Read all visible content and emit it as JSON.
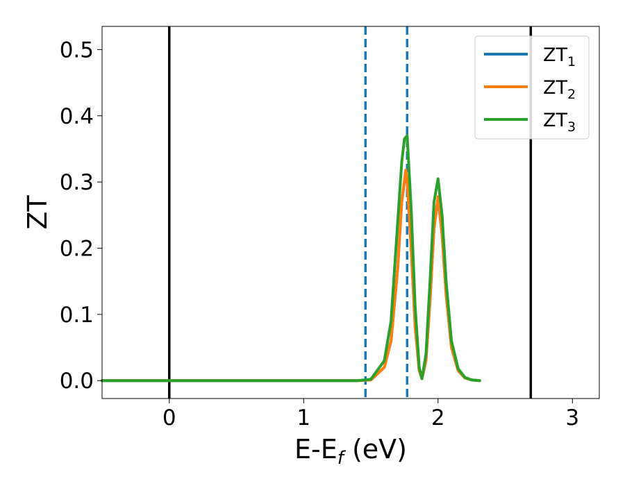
{
  "chart_data": {
    "type": "line",
    "xlabel": {
      "main": "E-E",
      "subscript": "f",
      "suffix": " (eV)"
    },
    "ylabel": "ZT",
    "xlim": [
      -0.5,
      3.2
    ],
    "ylim": [
      -0.027,
      0.535
    ],
    "xticks": [
      0,
      1,
      2,
      3
    ],
    "xtick_labels": [
      "0",
      "1",
      "2",
      "3"
    ],
    "yticks": [
      0.0,
      0.1,
      0.2,
      0.3,
      0.4,
      0.5
    ],
    "ytick_labels": [
      "0.0",
      "0.1",
      "0.2",
      "0.3",
      "0.4",
      "0.5"
    ],
    "grid": false,
    "legend": {
      "placement": "top-right",
      "entries": [
        {
          "base": "ZT",
          "sub": "1"
        },
        {
          "base": "ZT",
          "sub": "2"
        },
        {
          "base": "ZT",
          "sub": "3"
        }
      ]
    },
    "vertical_lines": [
      {
        "x": 0.0,
        "style": "solid",
        "color": "#000000"
      },
      {
        "x": 2.69,
        "style": "solid",
        "color": "#000000"
      },
      {
        "x": 1.46,
        "style": "dashed",
        "color": "#1f77b4"
      },
      {
        "x": 1.77,
        "style": "dashed",
        "color": "#1f77b4"
      }
    ],
    "series": [
      {
        "name": "ZT₁",
        "color": "#1f77b4",
        "x": [
          -0.5,
          1.4,
          1.5,
          1.6,
          1.65,
          1.7,
          1.73,
          1.76,
          1.77,
          1.8,
          1.83,
          1.86,
          1.88,
          1.91,
          1.94,
          1.97,
          2.0,
          2.03,
          2.06,
          2.1,
          2.15,
          2.2,
          2.25,
          2.31
        ],
        "y": [
          0.0,
          0.0,
          0.001,
          0.02,
          0.06,
          0.17,
          0.27,
          0.315,
          0.3,
          0.2,
          0.08,
          0.015,
          0.003,
          0.03,
          0.12,
          0.23,
          0.275,
          0.22,
          0.13,
          0.05,
          0.015,
          0.004,
          0.001,
          0.0
        ]
      },
      {
        "name": "ZT₂",
        "color": "#ff7f0e",
        "x": [
          -0.5,
          1.4,
          1.5,
          1.6,
          1.65,
          1.7,
          1.73,
          1.76,
          1.77,
          1.8,
          1.83,
          1.86,
          1.88,
          1.91,
          1.94,
          1.97,
          2.0,
          2.03,
          2.06,
          2.1,
          2.15,
          2.2,
          2.25,
          2.31
        ],
        "y": [
          0.0,
          0.0,
          0.001,
          0.02,
          0.06,
          0.17,
          0.27,
          0.318,
          0.302,
          0.2,
          0.08,
          0.015,
          0.003,
          0.03,
          0.12,
          0.23,
          0.278,
          0.22,
          0.13,
          0.05,
          0.015,
          0.004,
          0.001,
          0.0
        ]
      },
      {
        "name": "ZT₃",
        "color": "#2ca02c",
        "x": [
          -0.5,
          1.4,
          1.5,
          1.6,
          1.65,
          1.7,
          1.73,
          1.75,
          1.77,
          1.8,
          1.83,
          1.86,
          1.88,
          1.91,
          1.94,
          1.97,
          2.0,
          2.03,
          2.06,
          2.1,
          2.15,
          2.2,
          2.25,
          2.31
        ],
        "y": [
          0.0,
          0.0,
          0.002,
          0.03,
          0.09,
          0.24,
          0.33,
          0.365,
          0.37,
          0.26,
          0.11,
          0.02,
          0.003,
          0.04,
          0.15,
          0.27,
          0.305,
          0.25,
          0.15,
          0.06,
          0.018,
          0.005,
          0.001,
          0.0
        ]
      }
    ]
  }
}
